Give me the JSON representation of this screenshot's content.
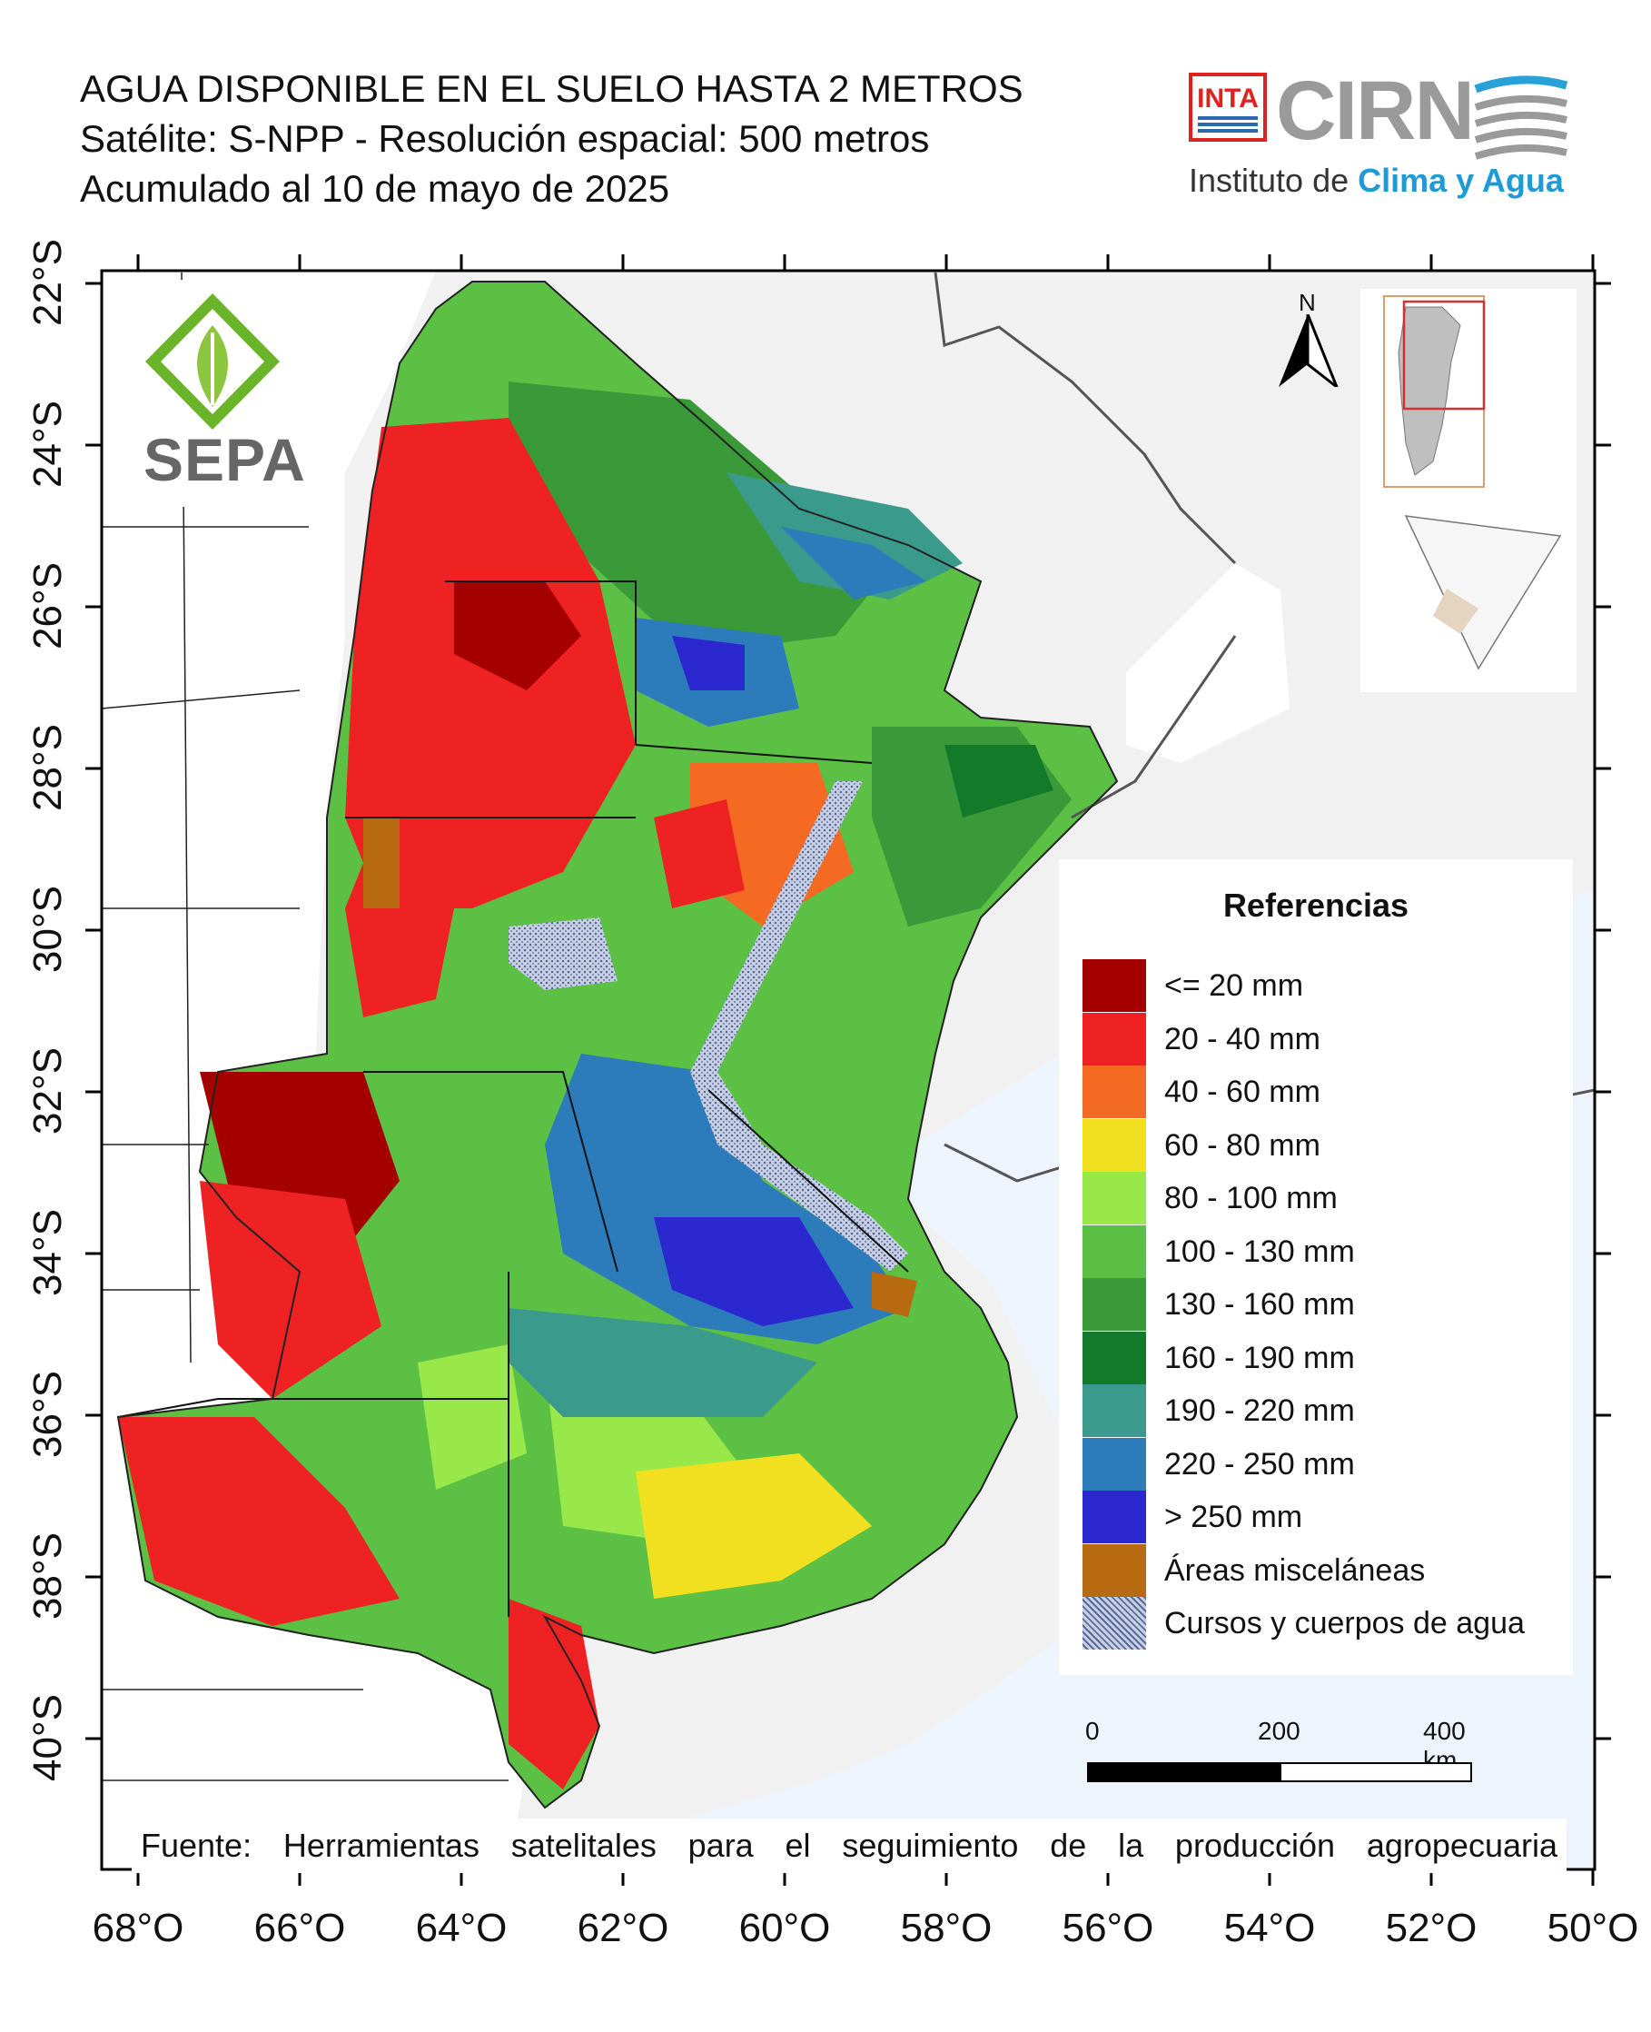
{
  "title": {
    "line1": "AGUA DISPONIBLE EN EL SUELO HASTA 2 METROS",
    "line2": "Satélite: S-NPP - Resolución espacial: 500 metros",
    "line3": "Acumulado al 10 de mayo de 2025"
  },
  "logos": {
    "inta": "INTA",
    "cirn": "CIRN",
    "institute_prefix": "Instituto de ",
    "institute_highlight": "Clima y Agua",
    "sepa": "SEPA"
  },
  "north_label": "N",
  "legend": {
    "title": "Referencias",
    "items": [
      {
        "label": "<= 20 mm",
        "color": "#a50000"
      },
      {
        "label": "20 - 40 mm",
        "color": "#ee2222"
      },
      {
        "label": "40 - 60 mm",
        "color": "#f46a22"
      },
      {
        "label": "60 - 80 mm",
        "color": "#f0e020"
      },
      {
        "label": "80 - 100 mm",
        "color": "#98e84a"
      },
      {
        "label": "100 - 130 mm",
        "color": "#5cc044"
      },
      {
        "label": "130 - 160 mm",
        "color": "#3a9a3a"
      },
      {
        "label": "160 - 190 mm",
        "color": "#137a2a"
      },
      {
        "label": "190 - 220 mm",
        "color": "#3a9a8c"
      },
      {
        "label": "220 - 250 mm",
        "color": "#2c7cbc"
      },
      {
        "label": "> 250 mm",
        "color": "#2c28d0"
      },
      {
        "label": "Áreas misceláneas",
        "color": "#b86a10"
      },
      {
        "label": "Cursos y cuerpos de agua",
        "color": "#9aa6c8"
      }
    ]
  },
  "scale_bar": {
    "labels": [
      "0",
      "200",
      "400 km"
    ]
  },
  "source": "Fuente: Herramientas satelitales para el seguimiento de la producción agropecuaria",
  "axes": {
    "longitudes": [
      "68°O",
      "66°O",
      "64°O",
      "62°O",
      "60°O",
      "58°O",
      "56°O",
      "54°O",
      "52°O",
      "50°O"
    ],
    "latitudes": [
      "22°S",
      "24°S",
      "26°S",
      "28°S",
      "30°S",
      "32°S",
      "34°S",
      "36°S",
      "38°S",
      "40°S"
    ]
  }
}
